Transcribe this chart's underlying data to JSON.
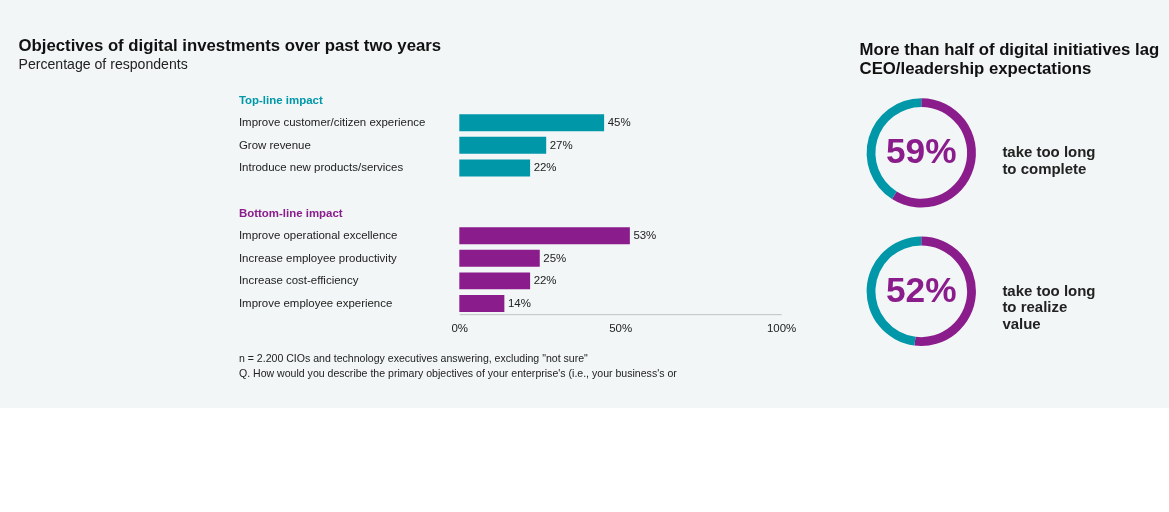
{
  "chart_data": [
    {
      "type": "bar",
      "orientation": "horizontal",
      "title": "Objectives of digital investments over past two years",
      "subtitle": "Percentage of respondents",
      "categories": [
        "Top-line impact",
        "Improve customer/citizen experience",
        "Grow revenue",
        "Introduce new products/services",
        null,
        "Bottom-line impact",
        "Improve operational excellence",
        "Increase employee productivity",
        "Increase cost-efficiency",
        "Improve employee experience"
      ],
      "values": [
        null,
        45,
        27,
        22,
        null,
        null,
        53,
        25,
        22,
        14
      ],
      "colors": [
        "#0097a9",
        "#0097a9",
        "#0097a9",
        "#0097a9",
        "#0097a9",
        "#8a1c8c",
        "#8a1c8c",
        "#8a1c8c",
        "#8a1c8c",
        "#8a1c8c"
      ],
      "value_labels": [
        null,
        "45%",
        "27%",
        "22%",
        null,
        null,
        "53%",
        "25%",
        "22%",
        "14%"
      ],
      "xlim": [
        0,
        100
      ],
      "xticks": [
        {
          "value": 0,
          "label": "0%"
        },
        {
          "value": 50,
          "label": "50%"
        },
        {
          "value": 100,
          "label": "100%"
        }
      ],
      "grid": false,
      "annotations": [
        "n = 2.200 CIOs and technology executives answering, excluding \"not sure\"",
        "Q. How would you describe the primary objectives of your enterprise's (i.e., your business's or"
      ]
    },
    {
      "type": "donut",
      "title": "More than half of digital initiatives lag CEO/leadership expectations",
      "categories": [
        "take too long to complete",
        null
      ],
      "values": [
        59,
        41
      ],
      "colors": [
        "#8a1c8c",
        "#0097a9"
      ],
      "value_labels": [
        "59%",
        null
      ]
    },
    {
      "type": "donut",
      "categories": [
        "take too long to realize value",
        null
      ],
      "values": [
        52,
        48
      ],
      "colors": [
        "#8a1c8c",
        "#0097a9"
      ],
      "value_labels": [
        "52%",
        null
      ]
    }
  ]
}
